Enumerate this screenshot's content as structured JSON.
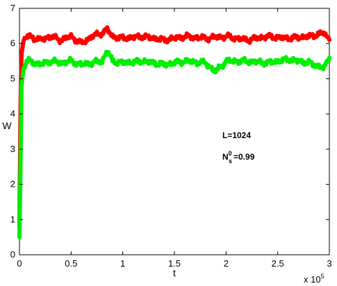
{
  "chart_data": {
    "type": "line",
    "title": "",
    "xlabel": "t",
    "ylabel": "W",
    "x_multiplier_label": {
      "prefix": "x 10",
      "exponent": "5"
    },
    "xlim": [
      0,
      3
    ],
    "ylim": [
      0,
      7
    ],
    "xticks": [
      0,
      0.5,
      1,
      1.5,
      2,
      2.5,
      3
    ],
    "xtick_labels": [
      "0",
      "0.5",
      "1",
      "1.5",
      "2",
      "2.5",
      "3"
    ],
    "yticks": [
      0,
      1,
      2,
      3,
      4,
      5,
      6,
      7
    ],
    "ytick_labels": [
      "0",
      "1",
      "2",
      "3",
      "4",
      "5",
      "6",
      "7"
    ],
    "grid": false,
    "annotations": {
      "size": "L=1024",
      "ns_main": "N",
      "ns_sup": "0",
      "ns_sub": "s",
      "ns_value": "=0.99"
    },
    "series": [
      {
        "color": "#ff0000",
        "x": [
          0,
          0.01,
          0.02,
          0.04,
          0.07,
          0.1,
          0.2,
          0.3,
          0.4,
          0.5,
          0.6,
          0.7,
          0.8,
          0.85,
          0.9,
          1.0,
          1.2,
          1.4,
          1.6,
          1.8,
          2.0,
          2.2,
          2.4,
          2.6,
          2.8,
          2.95,
          3.0
        ],
        "y": [
          0.8,
          4.2,
          5.7,
          6.1,
          6.2,
          6.2,
          6.1,
          6.2,
          6.1,
          6.2,
          6.0,
          6.2,
          6.3,
          6.4,
          6.2,
          6.15,
          6.2,
          6.1,
          6.2,
          6.15,
          6.2,
          6.1,
          6.2,
          6.15,
          6.2,
          6.3,
          6.1
        ]
      },
      {
        "color": "#00ee00",
        "x": [
          0,
          0.01,
          0.02,
          0.04,
          0.07,
          0.1,
          0.2,
          0.3,
          0.4,
          0.5,
          0.6,
          0.7,
          0.8,
          0.85,
          0.9,
          1.0,
          1.2,
          1.4,
          1.6,
          1.8,
          1.9,
          2.0,
          2.2,
          2.4,
          2.6,
          2.8,
          2.95,
          3.0
        ],
        "y": [
          0.5,
          2.5,
          4.8,
          5.3,
          5.5,
          5.5,
          5.4,
          5.5,
          5.45,
          5.5,
          5.4,
          5.45,
          5.5,
          5.8,
          5.5,
          5.45,
          5.5,
          5.4,
          5.5,
          5.45,
          5.2,
          5.5,
          5.5,
          5.45,
          5.55,
          5.45,
          5.3,
          5.6
        ]
      }
    ]
  }
}
